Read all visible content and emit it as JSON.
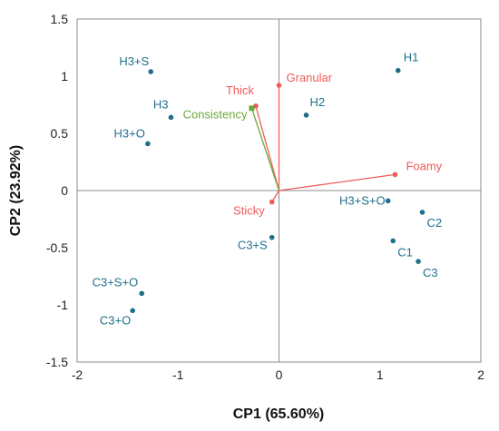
{
  "chart_data": {
    "type": "scatter",
    "title": "",
    "xlabel": "CP1 (65.60%)",
    "ylabel": "CP2 (23.92%)",
    "xlim": [
      -2,
      2
    ],
    "ylim": [
      -1.5,
      1.5
    ],
    "xticks": [
      -2,
      -1,
      0,
      1,
      2
    ],
    "yticks": [
      1.5,
      1,
      0.5,
      0,
      -0.5,
      -1,
      -1.5
    ],
    "grid": false,
    "legend": "none",
    "samples": {
      "color": "#1f6f8b",
      "points": [
        {
          "label": "H1",
          "x": 1.18,
          "y": 1.05
        },
        {
          "label": "H2",
          "x": 0.27,
          "y": 0.66
        },
        {
          "label": "H3",
          "x": -1.07,
          "y": 0.64
        },
        {
          "label": "H3+S",
          "x": -1.27,
          "y": 1.04
        },
        {
          "label": "H3+O",
          "x": -1.3,
          "y": 0.41
        },
        {
          "label": "H3+S+O",
          "x": 1.08,
          "y": -0.09
        },
        {
          "label": "C1",
          "x": 1.13,
          "y": -0.44
        },
        {
          "label": "C2",
          "x": 1.42,
          "y": -0.19
        },
        {
          "label": "C3",
          "x": 1.38,
          "y": -0.62
        },
        {
          "label": "C3+S",
          "x": -0.07,
          "y": -0.41
        },
        {
          "label": "C3+S+O",
          "x": -1.36,
          "y": -0.9
        },
        {
          "label": "C3+O",
          "x": -1.45,
          "y": -1.05
        }
      ]
    },
    "attributes": {
      "color": "#f05a5a",
      "vectors": [
        {
          "label": "Granular",
          "x": 0.0,
          "y": 0.92
        },
        {
          "label": "Thick",
          "x": -0.23,
          "y": 0.74
        },
        {
          "label": "Foamy",
          "x": 1.15,
          "y": 0.14
        },
        {
          "label": "Sticky",
          "x": -0.07,
          "y": -0.1
        }
      ]
    },
    "consistency": {
      "color": "#6aaa3a",
      "vectors": [
        {
          "label": "Consistency",
          "x": -0.27,
          "y": 0.72
        }
      ]
    }
  }
}
